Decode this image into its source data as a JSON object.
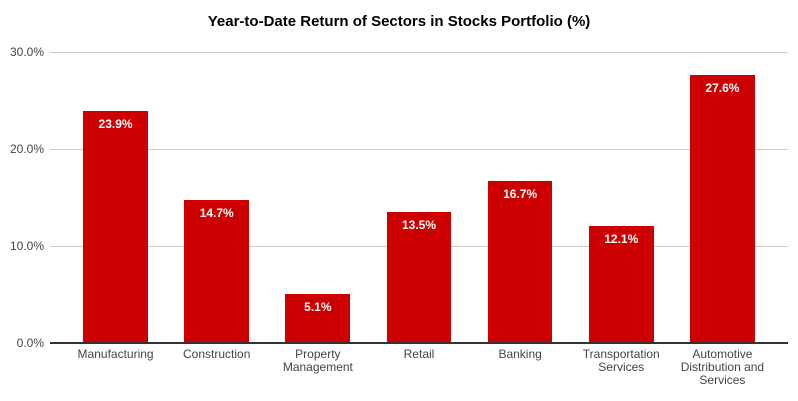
{
  "chart_data": {
    "type": "bar",
    "title": "Year-to-Date Return of Sectors in Stocks Portfolio (%)",
    "categories": [
      "Manufacturing",
      "Construction",
      "Property Management",
      "Retail",
      "Banking",
      "Transportation Services",
      "Automotive Distribution and Services"
    ],
    "values": [
      23.9,
      14.7,
      5.1,
      13.5,
      16.7,
      12.1,
      27.6
    ],
    "value_labels": [
      "23.9%",
      "14.7%",
      "5.1%",
      "13.5%",
      "16.7%",
      "12.1%",
      "27.6%"
    ],
    "y_ticks": [
      "30.0%",
      "20.0%",
      "10.0%",
      "0.0%"
    ],
    "ylim": [
      0,
      30
    ],
    "xlabel": "",
    "ylabel": "",
    "grid": true,
    "legend": "none",
    "colors": {
      "bar": "#cc0000",
      "bar_value_label": "#ffffff",
      "axis_label": "#444444",
      "gridline": "#cccccc",
      "axis_line": "#333333",
      "title": "#000000",
      "background": "#ffffff"
    }
  }
}
